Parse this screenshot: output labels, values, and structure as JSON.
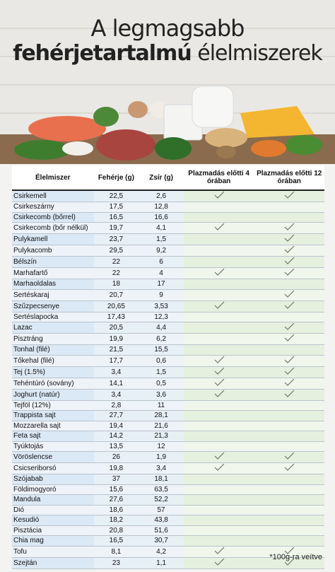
{
  "header": {
    "title_line1": "A legmagsabb",
    "title_bold": "fehérjetartalmú",
    "title_rest": "élelmiszerek"
  },
  "table": {
    "columns": [
      "Élelmiszer",
      "Fehérje (g)",
      "Zsír (g)",
      "Plazmadás előtti 4 órában",
      "Plazmadás előtti 12 órában"
    ],
    "rows": [
      [
        "Csirkemell",
        "22,5",
        "2,6",
        true,
        true
      ],
      [
        "Csirkeszárny",
        "17,5",
        "12,8",
        false,
        false
      ],
      [
        "Csirkecomb (bőrrel)",
        "16,5",
        "16,6",
        false,
        false
      ],
      [
        "Csirkecomb (bőr nélkül)",
        "19,7",
        "4,1",
        true,
        true
      ],
      [
        "Pulykamell",
        "23,7",
        "1,5",
        false,
        true
      ],
      [
        "Pulykacomb",
        "29,5",
        "9,2",
        false,
        true
      ],
      [
        "Bélszín",
        "22",
        "6",
        false,
        true
      ],
      [
        "Marhafartő",
        "22",
        "4",
        true,
        true
      ],
      [
        "Marhaoldalas",
        "18",
        "17",
        false,
        false
      ],
      [
        "Sertéskaraj",
        "20,7",
        "9",
        false,
        true
      ],
      [
        "Szűzpecsenye",
        "20,65",
        "3,53",
        true,
        true
      ],
      [
        "Sertéslapocka",
        "17,43",
        "12,3",
        false,
        false
      ],
      [
        "Lazac",
        "20,5",
        "4,4",
        false,
        true
      ],
      [
        "Pisztráng",
        "19,9",
        "6,2",
        false,
        true
      ],
      [
        "Tonhal (filé)",
        "21,5",
        "15,5",
        false,
        false
      ],
      [
        "Tőkehal (filé)",
        "17,7",
        "0,6",
        true,
        true
      ],
      [
        "Tej (1.5%)",
        "3,4",
        "1,5",
        true,
        true
      ],
      [
        "Tehéntúró (sovány)",
        "14,1",
        "0,5",
        true,
        true
      ],
      [
        "Joghurt (natúr)",
        "3,4",
        "3,6",
        true,
        true
      ],
      [
        "Tejföl (12%)",
        "2,8",
        "11",
        false,
        false
      ],
      [
        "Trappista sajt",
        "27,7",
        "28,1",
        false,
        false
      ],
      [
        "Mozzarella sajt",
        "19,4",
        "21,6",
        false,
        false
      ],
      [
        "Feta sajt",
        "14,2",
        "21,3",
        false,
        false
      ],
      [
        "Tyúktojás",
        "13,5",
        "12",
        false,
        false
      ],
      [
        "Vöröslencse",
        "26",
        "1,9",
        true,
        true
      ],
      [
        "Csicseriborsó",
        "19,8",
        "3,4",
        true,
        true
      ],
      [
        "Szójabab",
        "37",
        "18,1",
        false,
        false
      ],
      [
        "Földimogyoró",
        "15,6",
        "63,5",
        false,
        false
      ],
      [
        "Mandula",
        "27,6",
        "52,2",
        false,
        false
      ],
      [
        "Dió",
        "18,6",
        "57",
        false,
        false
      ],
      [
        "Kesudió",
        "18,2",
        "43,8",
        false,
        false
      ],
      [
        "Pisztácia",
        "20,8",
        "51,6",
        false,
        false
      ],
      [
        "Chia mag",
        "16,5",
        "30,7",
        false,
        false
      ],
      [
        "Tofu",
        "8,1",
        "4,2",
        true,
        true
      ],
      [
        "Szejtán",
        "23",
        "1,1",
        true,
        true
      ]
    ]
  },
  "footnote": "*100g-ra veítve"
}
